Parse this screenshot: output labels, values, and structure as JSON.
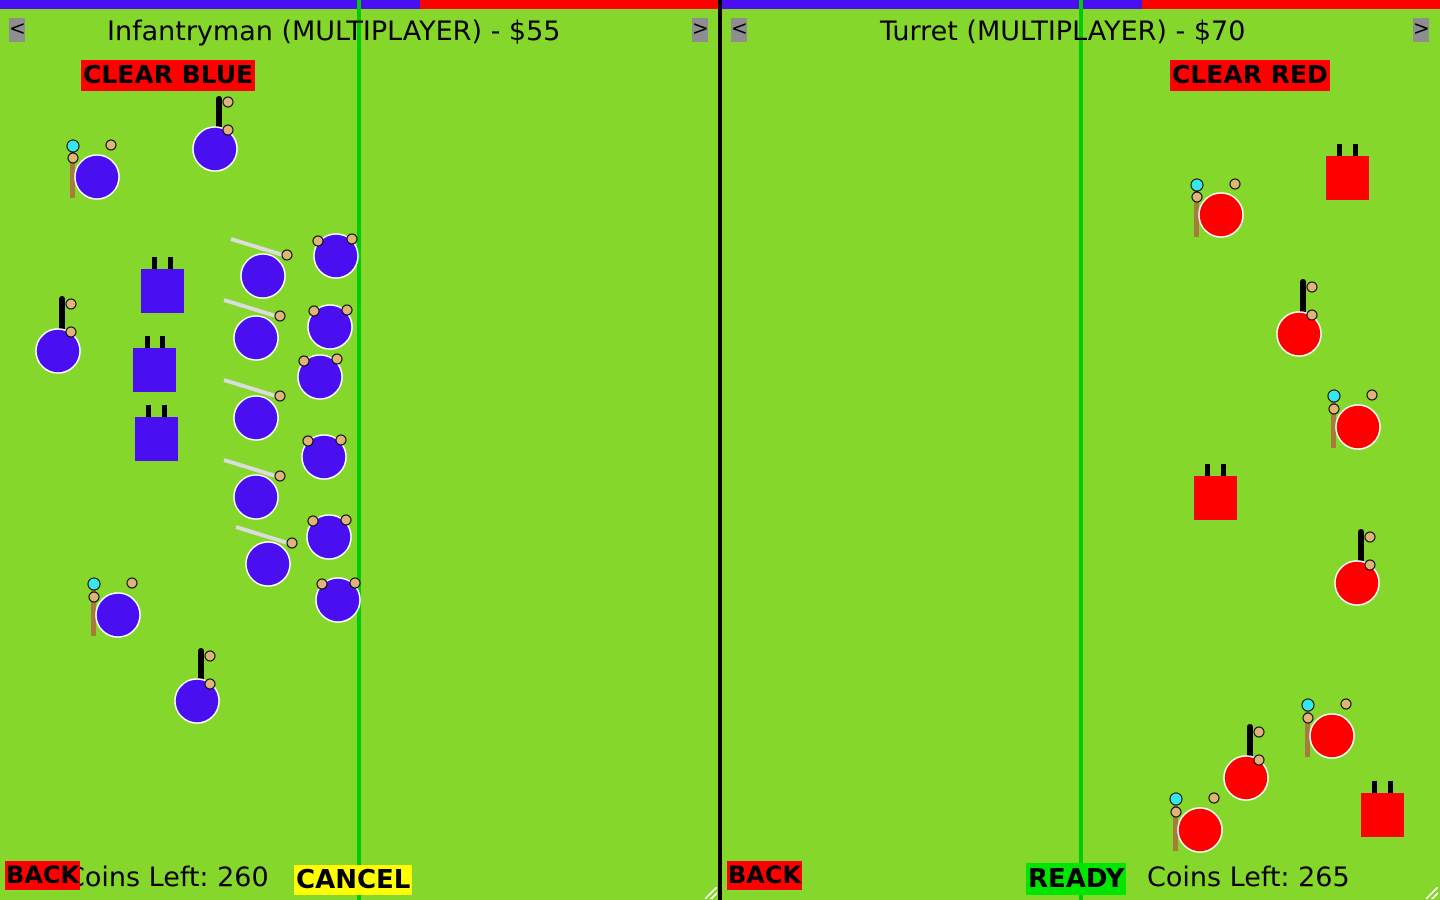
{
  "left": {
    "prev_label": "<",
    "next_label": ">",
    "title": "Infantryman (MULTIPLAYER) - $55",
    "clear_label": "CLEAR BLUE",
    "back_label": "BACK",
    "coins_text": "Coins Left: 260",
    "cancel_label": "CANCEL",
    "team_color": "#4a0ff0"
  },
  "right": {
    "prev_label": "<",
    "next_label": ">",
    "title": "Turret (MULTIPLAYER) - $70",
    "clear_label": "CLEAR RED",
    "back_label": "BACK",
    "ready_label": "READY",
    "coins_text": "Coins Left: 265",
    "team_color": "#ff0000"
  },
  "colors": {
    "field": "#86d72c",
    "blue_team": "#4a0ff0",
    "red_team": "#ff0000",
    "boundary": "#00cc00",
    "hand": "#e0b478",
    "staff": "#a87a3c",
    "orb": "#36e6f0",
    "sword": "#dcdcdc"
  },
  "icons": {
    "prev": "chevron-left-icon",
    "next": "chevron-right-icon",
    "resize": "resize-grip-icon"
  }
}
